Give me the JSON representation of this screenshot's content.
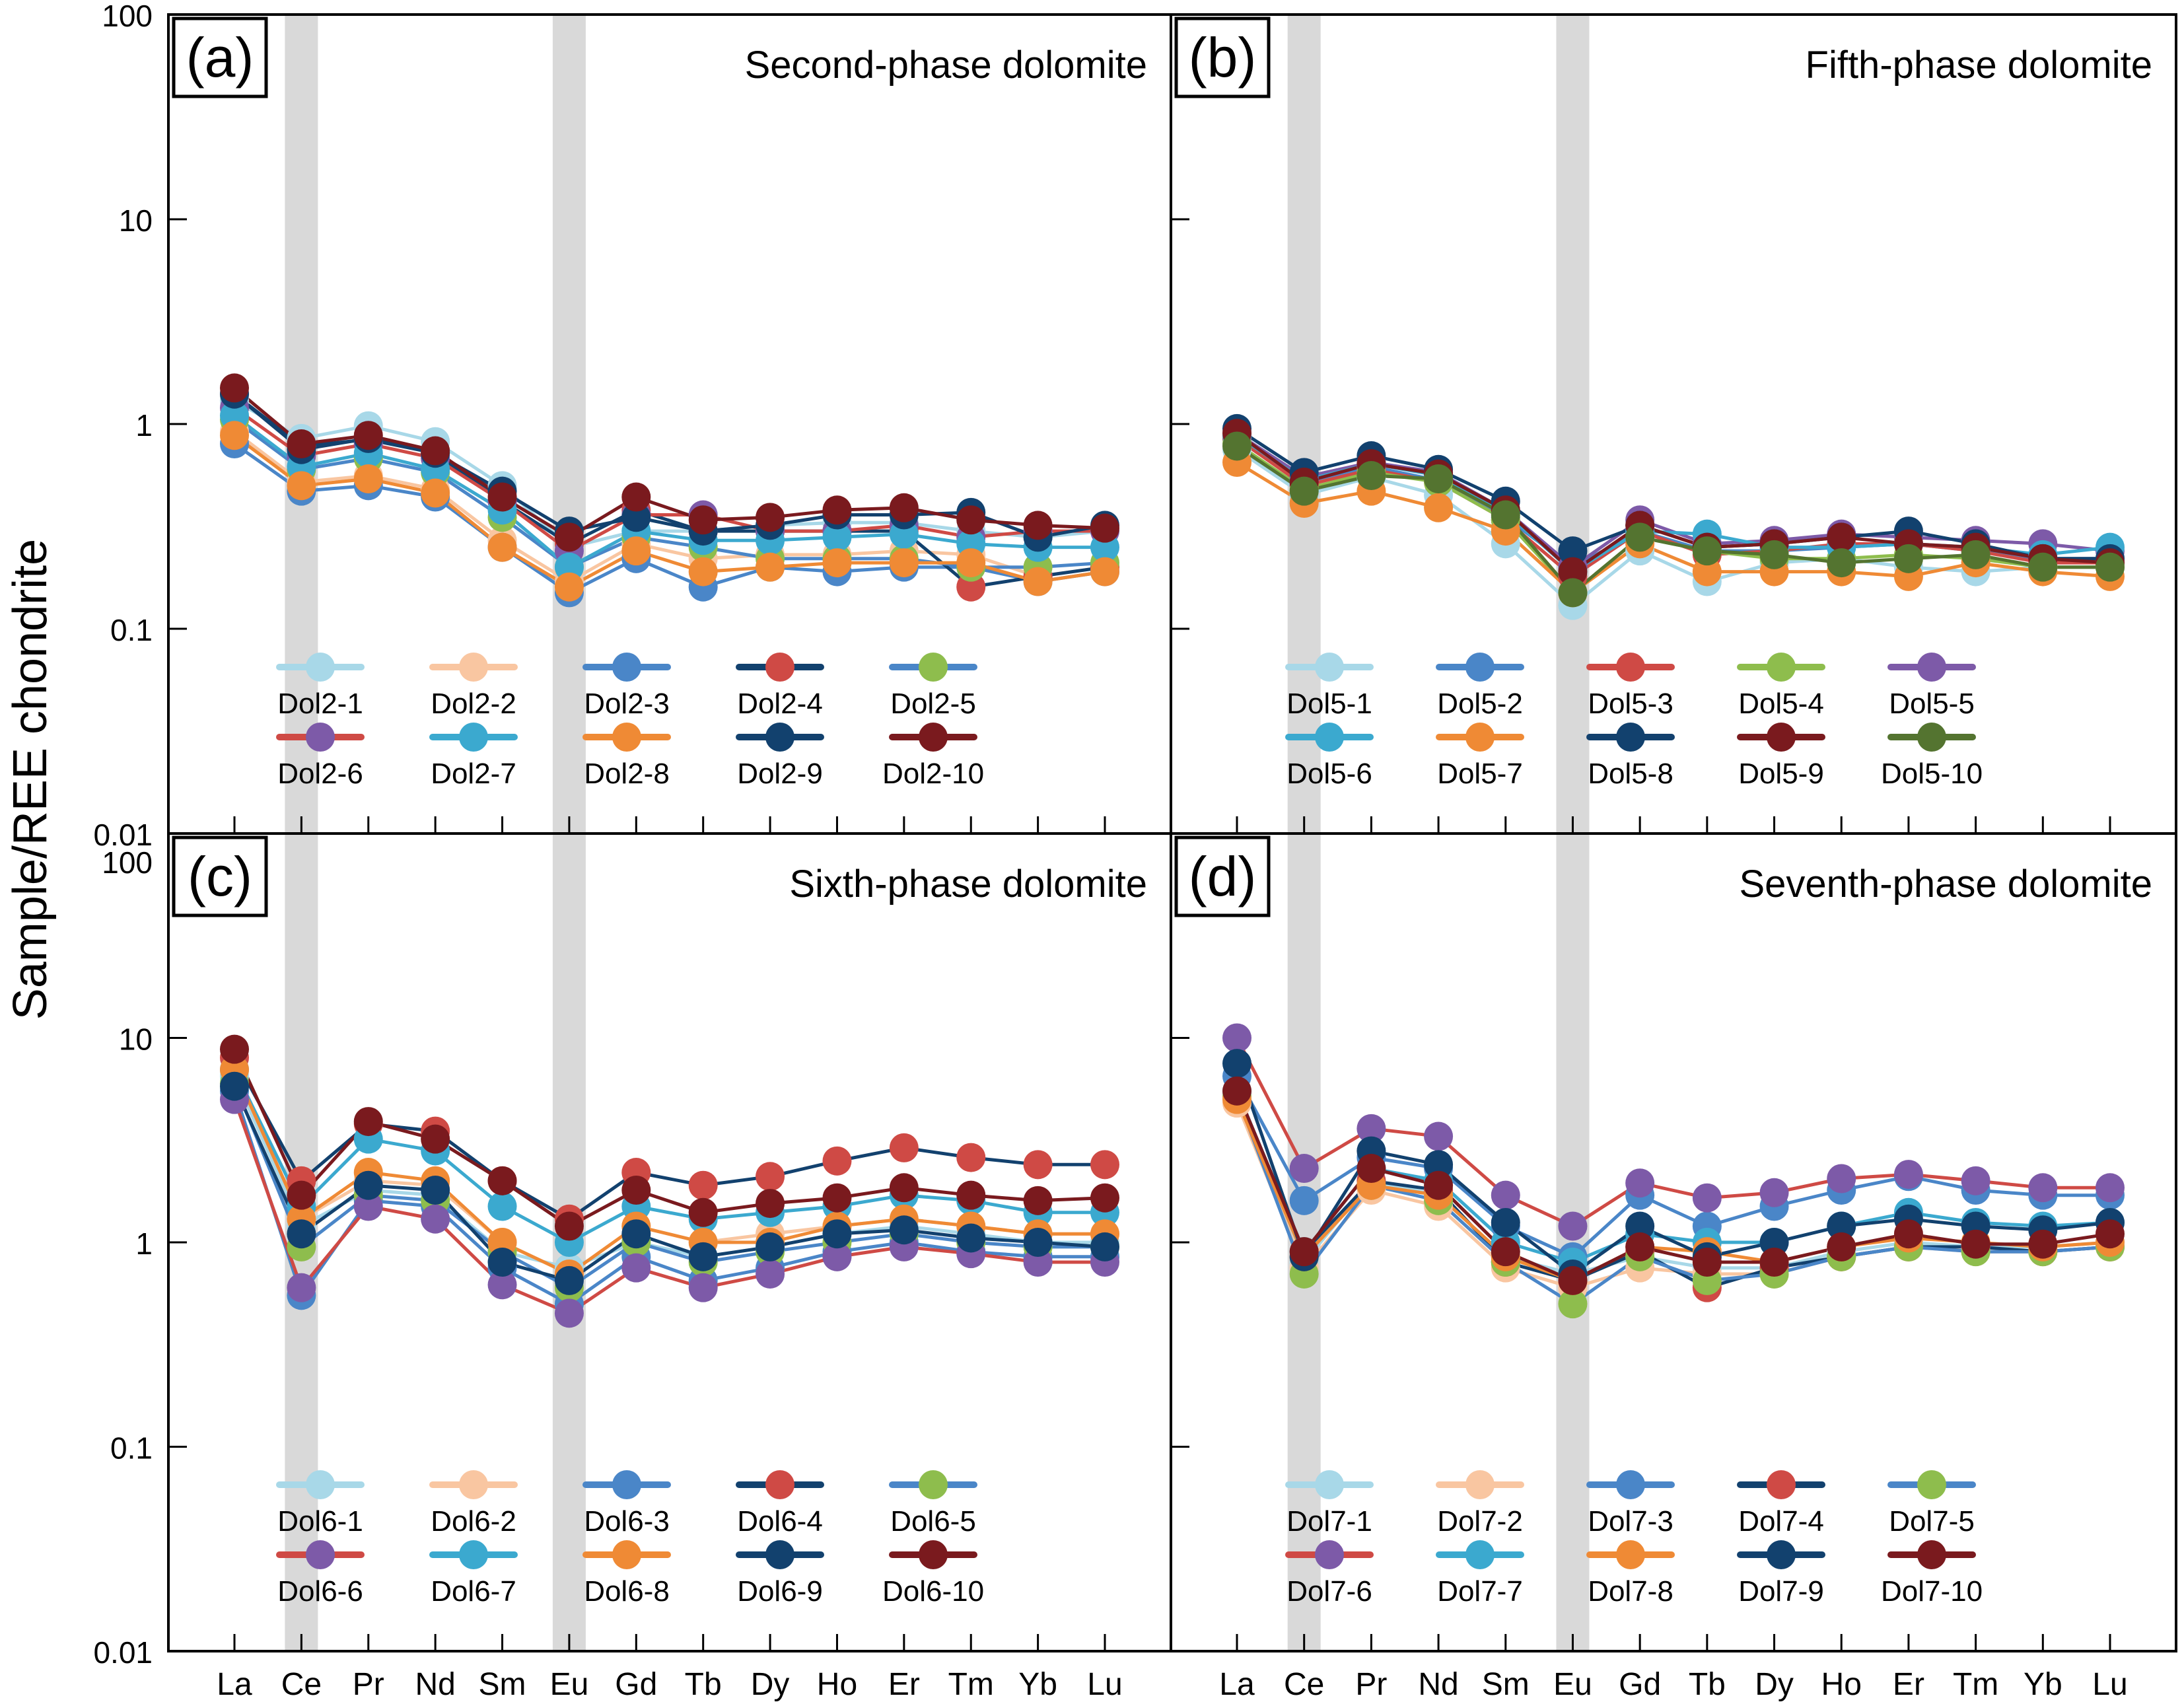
{
  "figure": {
    "y_axis_label": "Sample/REE chondrite",
    "colors": {
      "c1": "#a8d8e8",
      "c2": "#f9c6a1",
      "c3": "#4a86c8",
      "c4": "#cf4a45",
      "c5": "#8ebd4d",
      "c6": "#7d5aa8",
      "c7": "#3ba9cf",
      "c8": "#ef8a35",
      "c9": "#12416e",
      "c10": "#7a1a1e",
      "c10b": "#547430",
      "band": "#d9d9d9"
    }
  },
  "chart_data": [
    {
      "type": "line",
      "panel_label": "(a)",
      "title": "Second-phase dolomite",
      "yscale": "log",
      "ylim": [
        0.01,
        100
      ],
      "ytick_labels": [
        "0.01",
        "0.1",
        "1",
        "10",
        "100"
      ],
      "x": [
        "La",
        "Ce",
        "Pr",
        "Nd",
        "Sm",
        "Eu",
        "Gd",
        "Tb",
        "Dy",
        "Ho",
        "Er",
        "Tm",
        "Yb",
        "Lu"
      ],
      "xlabel": "",
      "ylabel": "Sample/REE chondrite",
      "highlight_bands": [
        "Ce",
        "Eu"
      ],
      "legend": {
        "placement": "lower-center",
        "columns": 5
      },
      "series": [
        {
          "name": "Dol2-1",
          "line": "#a8d8e8",
          "marker": "#a8d8e8",
          "values": [
            1.3,
            0.85,
            0.98,
            0.82,
            0.5,
            0.25,
            0.3,
            0.3,
            0.32,
            0.33,
            0.33,
            0.3,
            0.28,
            0.3
          ]
        },
        {
          "name": "Dol2-2",
          "line": "#f9c6a1",
          "marker": "#f9c6a1",
          "values": [
            0.92,
            0.52,
            0.56,
            0.48,
            0.27,
            0.17,
            0.26,
            0.22,
            0.23,
            0.23,
            0.24,
            0.23,
            0.18,
            0.2
          ]
        },
        {
          "name": "Dol2-3",
          "line": "#4a86c8",
          "marker": "#4a86c8",
          "values": [
            0.8,
            0.47,
            0.5,
            0.44,
            0.25,
            0.15,
            0.22,
            0.16,
            0.2,
            0.19,
            0.2,
            0.2,
            0.17,
            0.19
          ]
        },
        {
          "name": "Dol2-4",
          "line": "#12416e",
          "marker": "#cf4a45",
          "values": [
            1.4,
            0.78,
            0.84,
            0.72,
            0.42,
            0.26,
            0.38,
            0.3,
            0.3,
            0.3,
            0.3,
            0.16,
            0.18,
            0.2
          ]
        },
        {
          "name": "Dol2-5",
          "line": "#4a86c8",
          "marker": "#8ebd4d",
          "values": [
            1.05,
            0.6,
            0.68,
            0.58,
            0.35,
            0.2,
            0.28,
            0.25,
            0.22,
            0.22,
            0.22,
            0.2,
            0.2,
            0.21
          ]
        },
        {
          "name": "Dol2-6",
          "line": "#cf4a45",
          "marker": "#7d5aa8",
          "values": [
            1.2,
            0.7,
            0.8,
            0.68,
            0.42,
            0.24,
            0.36,
            0.36,
            0.3,
            0.3,
            0.32,
            0.28,
            0.3,
            0.3
          ]
        },
        {
          "name": "Dol2-7",
          "line": "#3ba9cf",
          "marker": "#3ba9cf",
          "values": [
            1.1,
            0.62,
            0.72,
            0.6,
            0.38,
            0.2,
            0.3,
            0.27,
            0.27,
            0.28,
            0.29,
            0.26,
            0.25,
            0.25
          ]
        },
        {
          "name": "Dol2-8",
          "line": "#ef8a35",
          "marker": "#ef8a35",
          "values": [
            0.88,
            0.5,
            0.54,
            0.46,
            0.25,
            0.16,
            0.24,
            0.19,
            0.2,
            0.21,
            0.21,
            0.21,
            0.17,
            0.19
          ]
        },
        {
          "name": "Dol2-9",
          "line": "#12416e",
          "marker": "#12416e",
          "values": [
            1.4,
            0.75,
            0.85,
            0.72,
            0.47,
            0.3,
            0.35,
            0.3,
            0.32,
            0.36,
            0.36,
            0.37,
            0.28,
            0.32
          ]
        },
        {
          "name": "Dol2-10",
          "line": "#7a1a1e",
          "marker": "#7a1a1e",
          "values": [
            1.5,
            0.8,
            0.88,
            0.74,
            0.44,
            0.28,
            0.44,
            0.34,
            0.35,
            0.38,
            0.39,
            0.34,
            0.32,
            0.31
          ]
        }
      ]
    },
    {
      "type": "line",
      "panel_label": "(b)",
      "title": "Fifth-phase dolomite",
      "yscale": "log",
      "ylim": [
        0.01,
        100
      ],
      "ytick_labels": [
        "0.01",
        "0.1",
        "1",
        "10",
        "100"
      ],
      "x": [
        "La",
        "Ce",
        "Pr",
        "Nd",
        "Sm",
        "Eu",
        "Gd",
        "Tb",
        "Dy",
        "Ho",
        "Er",
        "Tm",
        "Yb",
        "Lu"
      ],
      "xlabel": "",
      "ylabel": "Sample/REE chondrite",
      "highlight_bands": [
        "Ce",
        "Eu"
      ],
      "legend": {
        "placement": "lower-center",
        "columns": 5
      },
      "series": [
        {
          "name": "Dol5-1",
          "line": "#a8d8e8",
          "marker": "#a8d8e8",
          "values": [
            0.75,
            0.45,
            0.55,
            0.45,
            0.26,
            0.13,
            0.24,
            0.17,
            0.21,
            0.22,
            0.2,
            0.19,
            0.2,
            0.2
          ]
        },
        {
          "name": "Dol5-2",
          "line": "#4a86c8",
          "marker": "#4a86c8",
          "values": [
            0.85,
            0.52,
            0.62,
            0.53,
            0.35,
            0.2,
            0.3,
            0.24,
            0.24,
            0.25,
            0.26,
            0.24,
            0.22,
            0.22
          ]
        },
        {
          "name": "Dol5-3",
          "line": "#cf4a45",
          "marker": "#cf4a45",
          "values": [
            0.85,
            0.5,
            0.6,
            0.52,
            0.34,
            0.18,
            0.3,
            0.23,
            0.24,
            0.26,
            0.26,
            0.24,
            0.21,
            0.21
          ]
        },
        {
          "name": "Dol5-4",
          "line": "#8ebd4d",
          "marker": "#8ebd4d",
          "values": [
            0.8,
            0.48,
            0.58,
            0.52,
            0.34,
            0.15,
            0.28,
            0.24,
            0.22,
            0.22,
            0.23,
            0.22,
            0.2,
            0.2
          ]
        },
        {
          "name": "Dol5-5",
          "line": "#7d5aa8",
          "marker": "#7d5aa8",
          "values": [
            0.9,
            0.55,
            0.65,
            0.58,
            0.38,
            0.2,
            0.34,
            0.26,
            0.27,
            0.29,
            0.28,
            0.27,
            0.26,
            0.24
          ]
        },
        {
          "name": "Dol5-6",
          "line": "#3ba9cf",
          "marker": "#3ba9cf",
          "values": [
            0.88,
            0.53,
            0.64,
            0.56,
            0.37,
            0.19,
            0.3,
            0.29,
            0.25,
            0.25,
            0.26,
            0.25,
            0.23,
            0.25
          ]
        },
        {
          "name": "Dol5-7",
          "line": "#ef8a35",
          "marker": "#ef8a35",
          "values": [
            0.65,
            0.41,
            0.47,
            0.39,
            0.3,
            0.15,
            0.26,
            0.19,
            0.19,
            0.19,
            0.18,
            0.21,
            0.19,
            0.18
          ]
        },
        {
          "name": "Dol5-8",
          "line": "#12416e",
          "marker": "#12416e",
          "values": [
            0.95,
            0.58,
            0.7,
            0.6,
            0.42,
            0.24,
            0.32,
            0.25,
            0.26,
            0.28,
            0.3,
            0.26,
            0.22,
            0.22
          ]
        },
        {
          "name": "Dol5-9",
          "line": "#7a1a1e",
          "marker": "#7a1a1e",
          "values": [
            0.9,
            0.52,
            0.64,
            0.57,
            0.38,
            0.19,
            0.32,
            0.25,
            0.26,
            0.28,
            0.26,
            0.25,
            0.22,
            0.21
          ]
        },
        {
          "name": "Dol5-10",
          "line": "#547430",
          "marker": "#547430",
          "values": [
            0.78,
            0.47,
            0.56,
            0.54,
            0.36,
            0.15,
            0.28,
            0.24,
            0.23,
            0.21,
            0.22,
            0.23,
            0.2,
            0.2
          ]
        }
      ]
    },
    {
      "type": "line",
      "panel_label": "(c)",
      "title": "Sixth-phase dolomite",
      "yscale": "log",
      "ylim": [
        0.01,
        100
      ],
      "ytick_labels": [
        "0.01",
        "0.1",
        "1",
        "10",
        "100"
      ],
      "x": [
        "La",
        "Ce",
        "Pr",
        "Nd",
        "Sm",
        "Eu",
        "Gd",
        "Tb",
        "Dy",
        "Ho",
        "Er",
        "Tm",
        "Yb",
        "Lu"
      ],
      "xlabel": "",
      "ylabel": "Sample/REE chondrite",
      "highlight_bands": [
        "Ce",
        "Eu"
      ],
      "legend": {
        "placement": "lower-center",
        "columns": 5
      },
      "series": [
        {
          "name": "Dol6-1",
          "line": "#a8d8e8",
          "marker": "#a8d8e8",
          "values": [
            6.5,
            1.2,
            1.8,
            1.7,
            0.9,
            0.75,
            1.0,
            0.85,
            0.95,
            1.1,
            1.2,
            1.1,
            1.0,
            1.0
          ]
        },
        {
          "name": "Dol6-2",
          "line": "#f9c6a1",
          "marker": "#f9c6a1",
          "values": [
            7.0,
            1.3,
            2.0,
            1.9,
            1.0,
            0.7,
            1.2,
            1.0,
            1.1,
            1.2,
            1.3,
            1.2,
            1.1,
            1.1
          ]
        },
        {
          "name": "Dol6-3",
          "line": "#4a86c8",
          "marker": "#4a86c8",
          "values": [
            5.5,
            0.55,
            1.6,
            1.5,
            0.75,
            0.5,
            0.85,
            0.65,
            0.75,
            0.9,
            1.0,
            0.9,
            0.85,
            0.85
          ]
        },
        {
          "name": "Dol6-4",
          "line": "#12416e",
          "marker": "#cf4a45",
          "values": [
            8.0,
            2.0,
            3.8,
            3.5,
            2.0,
            1.3,
            2.2,
            1.9,
            2.1,
            2.5,
            2.9,
            2.6,
            2.4,
            2.4
          ]
        },
        {
          "name": "Dol6-5",
          "line": "#4a86c8",
          "marker": "#8ebd4d",
          "values": [
            6.0,
            0.95,
            1.7,
            1.6,
            0.9,
            0.6,
            1.0,
            0.8,
            0.9,
            1.0,
            1.1,
            1.0,
            0.95,
            0.95
          ]
        },
        {
          "name": "Dol6-6",
          "line": "#cf4a45",
          "marker": "#7d5aa8",
          "values": [
            5.0,
            0.6,
            1.5,
            1.3,
            0.62,
            0.45,
            0.75,
            0.6,
            0.7,
            0.85,
            0.95,
            0.88,
            0.8,
            0.8
          ]
        },
        {
          "name": "Dol6-7",
          "line": "#3ba9cf",
          "marker": "#3ba9cf",
          "values": [
            7.0,
            1.5,
            3.2,
            2.8,
            1.5,
            1.0,
            1.5,
            1.3,
            1.4,
            1.5,
            1.7,
            1.6,
            1.4,
            1.4
          ]
        },
        {
          "name": "Dol6-8",
          "line": "#ef8a35",
          "marker": "#ef8a35",
          "values": [
            7.0,
            1.3,
            2.2,
            2.0,
            1.0,
            0.7,
            1.2,
            1.0,
            1.0,
            1.2,
            1.3,
            1.2,
            1.1,
            1.1
          ]
        },
        {
          "name": "Dol6-9",
          "line": "#12416e",
          "marker": "#12416e",
          "values": [
            5.8,
            1.1,
            1.9,
            1.8,
            0.8,
            0.65,
            1.1,
            0.85,
            0.95,
            1.1,
            1.15,
            1.05,
            1.0,
            0.95
          ]
        },
        {
          "name": "Dol6-10",
          "line": "#7a1a1e",
          "marker": "#7a1a1e",
          "values": [
            8.8,
            1.7,
            3.9,
            3.2,
            2.0,
            1.2,
            1.8,
            1.4,
            1.55,
            1.65,
            1.85,
            1.7,
            1.6,
            1.65
          ]
        }
      ]
    },
    {
      "type": "line",
      "panel_label": "(d)",
      "title": "Seventh-phase dolomite",
      "yscale": "log",
      "ylim": [
        0.01,
        100
      ],
      "ytick_labels": [
        "0.01",
        "0.1",
        "1",
        "10",
        "100"
      ],
      "x": [
        "La",
        "Ce",
        "Pr",
        "Nd",
        "Sm",
        "Eu",
        "Gd",
        "Tb",
        "Dy",
        "Ho",
        "Er",
        "Tm",
        "Yb",
        "Lu"
      ],
      "xlabel": "",
      "ylabel": "Sample/REE chondrite",
      "highlight_bands": [
        "Ce",
        "Eu"
      ],
      "legend": {
        "placement": "lower-center",
        "columns": 5
      },
      "series": [
        {
          "name": "Dol7-1",
          "line": "#a8d8e8",
          "marker": "#a8d8e8",
          "values": [
            5.0,
            0.8,
            2.0,
            1.7,
            0.85,
            0.7,
            0.85,
            0.75,
            0.75,
            0.9,
            1.0,
            0.95,
            0.95,
            1.0
          ]
        },
        {
          "name": "Dol7-2",
          "line": "#f9c6a1",
          "marker": "#f9c6a1",
          "values": [
            4.8,
            0.75,
            1.8,
            1.5,
            0.75,
            0.6,
            0.75,
            0.7,
            0.7,
            0.85,
            0.95,
            0.9,
            0.9,
            0.95
          ]
        },
        {
          "name": "Dol7-3",
          "line": "#4a86c8",
          "marker": "#4a86c8",
          "values": [
            6.5,
            1.6,
            2.6,
            2.3,
            1.2,
            0.85,
            1.7,
            1.2,
            1.5,
            1.8,
            2.1,
            1.8,
            1.7,
            1.7
          ]
        },
        {
          "name": "Dol7-4",
          "line": "#12416e",
          "marker": "#cf4a45",
          "values": [
            5.5,
            0.9,
            2.0,
            1.8,
            0.8,
            0.65,
            0.9,
            0.6,
            0.75,
            0.85,
            0.95,
            0.95,
            0.9,
            0.95
          ]
        },
        {
          "name": "Dol7-5",
          "line": "#4a86c8",
          "marker": "#8ebd4d",
          "values": [
            5.2,
            0.7,
            1.9,
            1.6,
            0.8,
            0.5,
            0.85,
            0.65,
            0.7,
            0.85,
            0.95,
            0.9,
            0.9,
            0.95
          ]
        },
        {
          "name": "Dol7-6",
          "line": "#cf4a45",
          "marker": "#7d5aa8",
          "values": [
            10.0,
            2.3,
            3.6,
            3.3,
            1.7,
            1.2,
            1.95,
            1.65,
            1.75,
            2.05,
            2.15,
            2.0,
            1.85,
            1.85
          ]
        },
        {
          "name": "Dol7-7",
          "line": "#3ba9cf",
          "marker": "#3ba9cf",
          "values": [
            5.5,
            0.9,
            2.3,
            2.0,
            1.0,
            0.8,
            1.1,
            1.0,
            1.0,
            1.2,
            1.4,
            1.25,
            1.2,
            1.25
          ]
        },
        {
          "name": "Dol7-8",
          "line": "#ef8a35",
          "marker": "#ef8a35",
          "values": [
            5.0,
            0.85,
            1.9,
            1.7,
            0.85,
            0.65,
            0.95,
            0.9,
            0.8,
            0.95,
            1.05,
            1.0,
            0.95,
            1.0
          ]
        },
        {
          "name": "Dol7-9",
          "line": "#12416e",
          "marker": "#12416e",
          "values": [
            7.5,
            0.85,
            2.8,
            2.4,
            1.25,
            0.7,
            1.2,
            0.85,
            1.0,
            1.2,
            1.3,
            1.2,
            1.15,
            1.25
          ]
        },
        {
          "name": "Dol7-10",
          "line": "#7a1a1e",
          "marker": "#7a1a1e",
          "values": [
            5.5,
            0.9,
            2.3,
            1.9,
            0.9,
            0.65,
            0.95,
            0.8,
            0.8,
            0.95,
            1.1,
            0.98,
            0.98,
            1.1
          ]
        }
      ]
    }
  ]
}
